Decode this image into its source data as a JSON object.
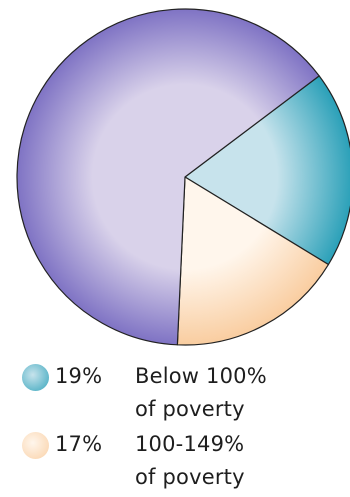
{
  "chart_data": {
    "type": "pie",
    "slices": [
      {
        "label": "Below 100% of poverty",
        "value": 19,
        "display": "19%",
        "text": "Below 100%\nof poverty",
        "color_light": "#c7e3ec",
        "color_dark": "#2aa0b8"
      },
      {
        "label": "100-149% of poverty",
        "value": 17,
        "display": "17%",
        "text": "100-149%\nof poverty",
        "color_light": "#fff6ec",
        "color_dark": "#f9cda0"
      },
      {
        "label": "",
        "value": 64,
        "color_light": "#d9d2ea",
        "color_dark": "#7f73c4"
      }
    ],
    "start_angle_deg": -37,
    "legend_position": "bottom"
  }
}
